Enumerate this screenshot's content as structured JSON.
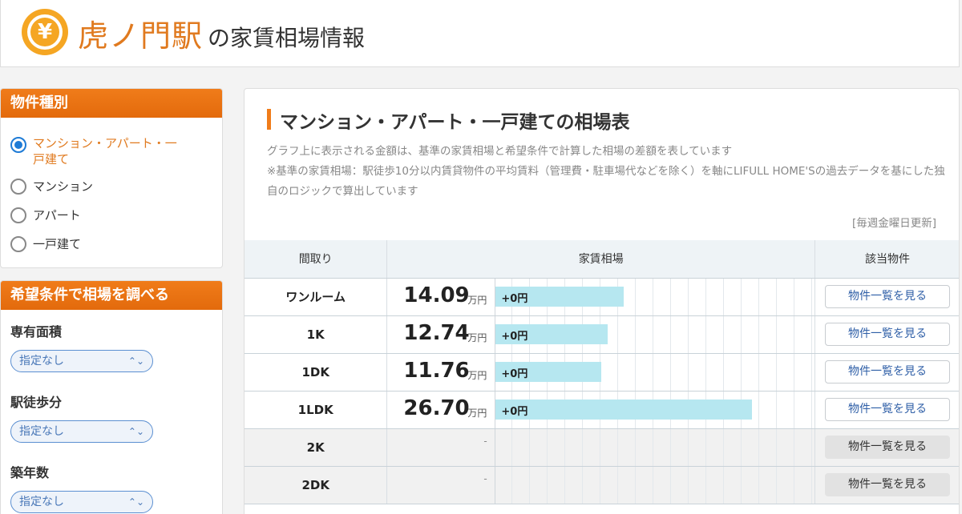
{
  "header": {
    "station": "虎ノ門駅",
    "suffix": "の家賃相場情報",
    "yen_symbol": "¥"
  },
  "sidebar": {
    "property_type": {
      "title": "物件種別",
      "options": [
        {
          "label": "マンション・アパート・一戸建て",
          "selected": true
        },
        {
          "label": "マンション",
          "selected": false
        },
        {
          "label": "アパート",
          "selected": false
        },
        {
          "label": "一戸建て",
          "selected": false
        }
      ]
    },
    "conditions": {
      "title": "希望条件で相場を調べる",
      "fields": [
        {
          "label": "専有面積",
          "value": "指定なし"
        },
        {
          "label": "駅徒歩分",
          "value": "指定なし"
        },
        {
          "label": "築年数",
          "value": "指定なし"
        }
      ]
    }
  },
  "main": {
    "title": "マンション・アパート・一戸建ての相場表",
    "desc1": "グラフ上に表示される金額は、基準の家賃相場と希望条件で計算した相場の差額を表しています",
    "desc2": "※基準の家賃相場：駅徒歩10分以内賃貸物件の平均賃料（管理費・駐車場代などを除く）を軸にLIFULL HOME'Sの過去データを基にした独自のロジックで算出しています",
    "update": "[毎週金曜日更新]",
    "table": {
      "headers": [
        "間取り",
        "家賃相場",
        "該当物件"
      ],
      "unit": "万円",
      "rows": [
        {
          "layout": "ワンルーム",
          "price": "14.09",
          "diff": "+0円",
          "bar": 0.4,
          "action": "物件一覧を見る"
        },
        {
          "layout": "1K",
          "price": "12.74",
          "diff": "+0円",
          "bar": 0.35,
          "action": "物件一覧を見る"
        },
        {
          "layout": "1DK",
          "price": "11.76",
          "diff": "+0円",
          "bar": 0.33,
          "action": "物件一覧を見る"
        },
        {
          "layout": "1LDK",
          "price": "26.70",
          "diff": "+0円",
          "bar": 0.8,
          "action": "物件一覧を見る"
        },
        {
          "layout": "2K",
          "price": null,
          "dash": "-",
          "action": "物件一覧を見る"
        },
        {
          "layout": "2DK",
          "price": null,
          "dash": "-",
          "action": "物件一覧を見る"
        }
      ]
    }
  },
  "colors": {
    "accent": "#f07c1a",
    "bar": "#b6e7f0",
    "link": "#2f5fa7"
  }
}
